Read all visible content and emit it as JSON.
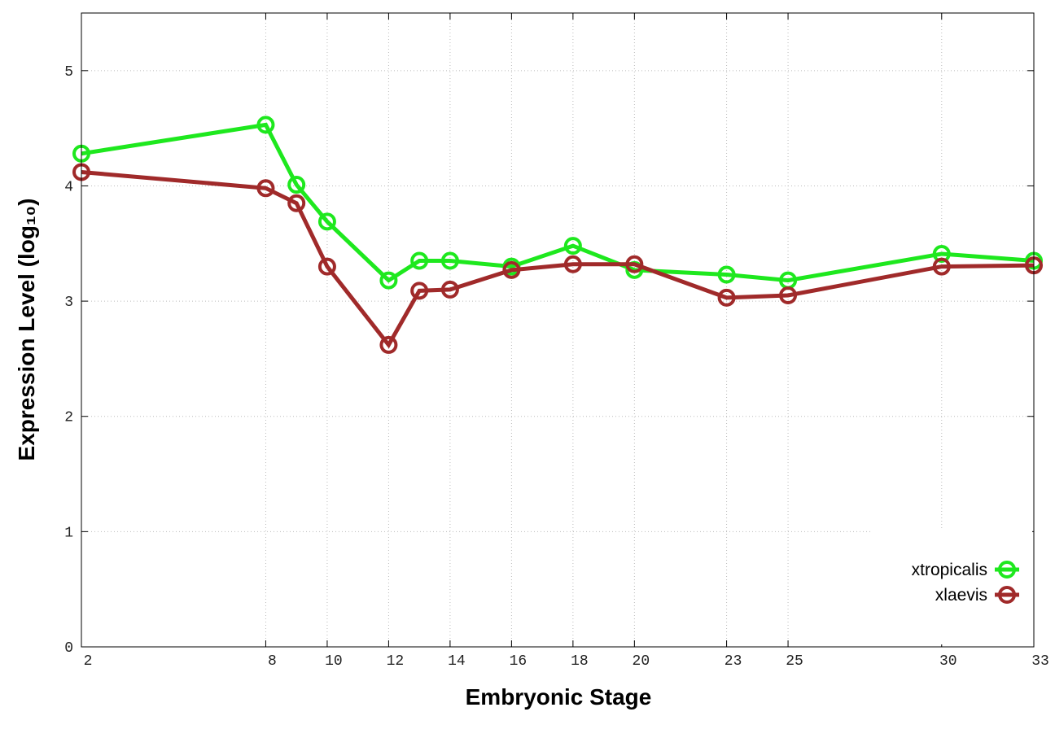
{
  "chart_data": {
    "type": "line",
    "x_label": "Embryonic Stage",
    "y_label": "Expression Level (log₁₀)",
    "x": [
      2,
      8,
      9,
      10,
      12,
      13,
      14,
      16,
      18,
      20,
      23,
      25,
      30,
      33
    ],
    "series": [
      {
        "name": "xtropicalis",
        "color": "#1ee81e",
        "values": [
          4.28,
          4.53,
          4.01,
          3.69,
          3.18,
          3.35,
          3.35,
          3.3,
          3.48,
          3.27,
          3.23,
          3.18,
          3.41,
          3.35
        ]
      },
      {
        "name": "xlaevis",
        "color": "#a02a2a",
        "values": [
          4.12,
          3.98,
          3.85,
          3.3,
          2.62,
          3.09,
          3.1,
          3.27,
          3.32,
          3.32,
          3.03,
          3.05,
          3.3,
          3.31
        ]
      }
    ],
    "xlim": [
      2,
      33
    ],
    "xticks": [
      2,
      8,
      10,
      12,
      14,
      16,
      18,
      20,
      23,
      25,
      30,
      33
    ],
    "ylim": [
      0,
      5.5
    ],
    "yticks": [
      0,
      1,
      2,
      3,
      4,
      5
    ],
    "grid": true,
    "legend": "lower-right"
  }
}
